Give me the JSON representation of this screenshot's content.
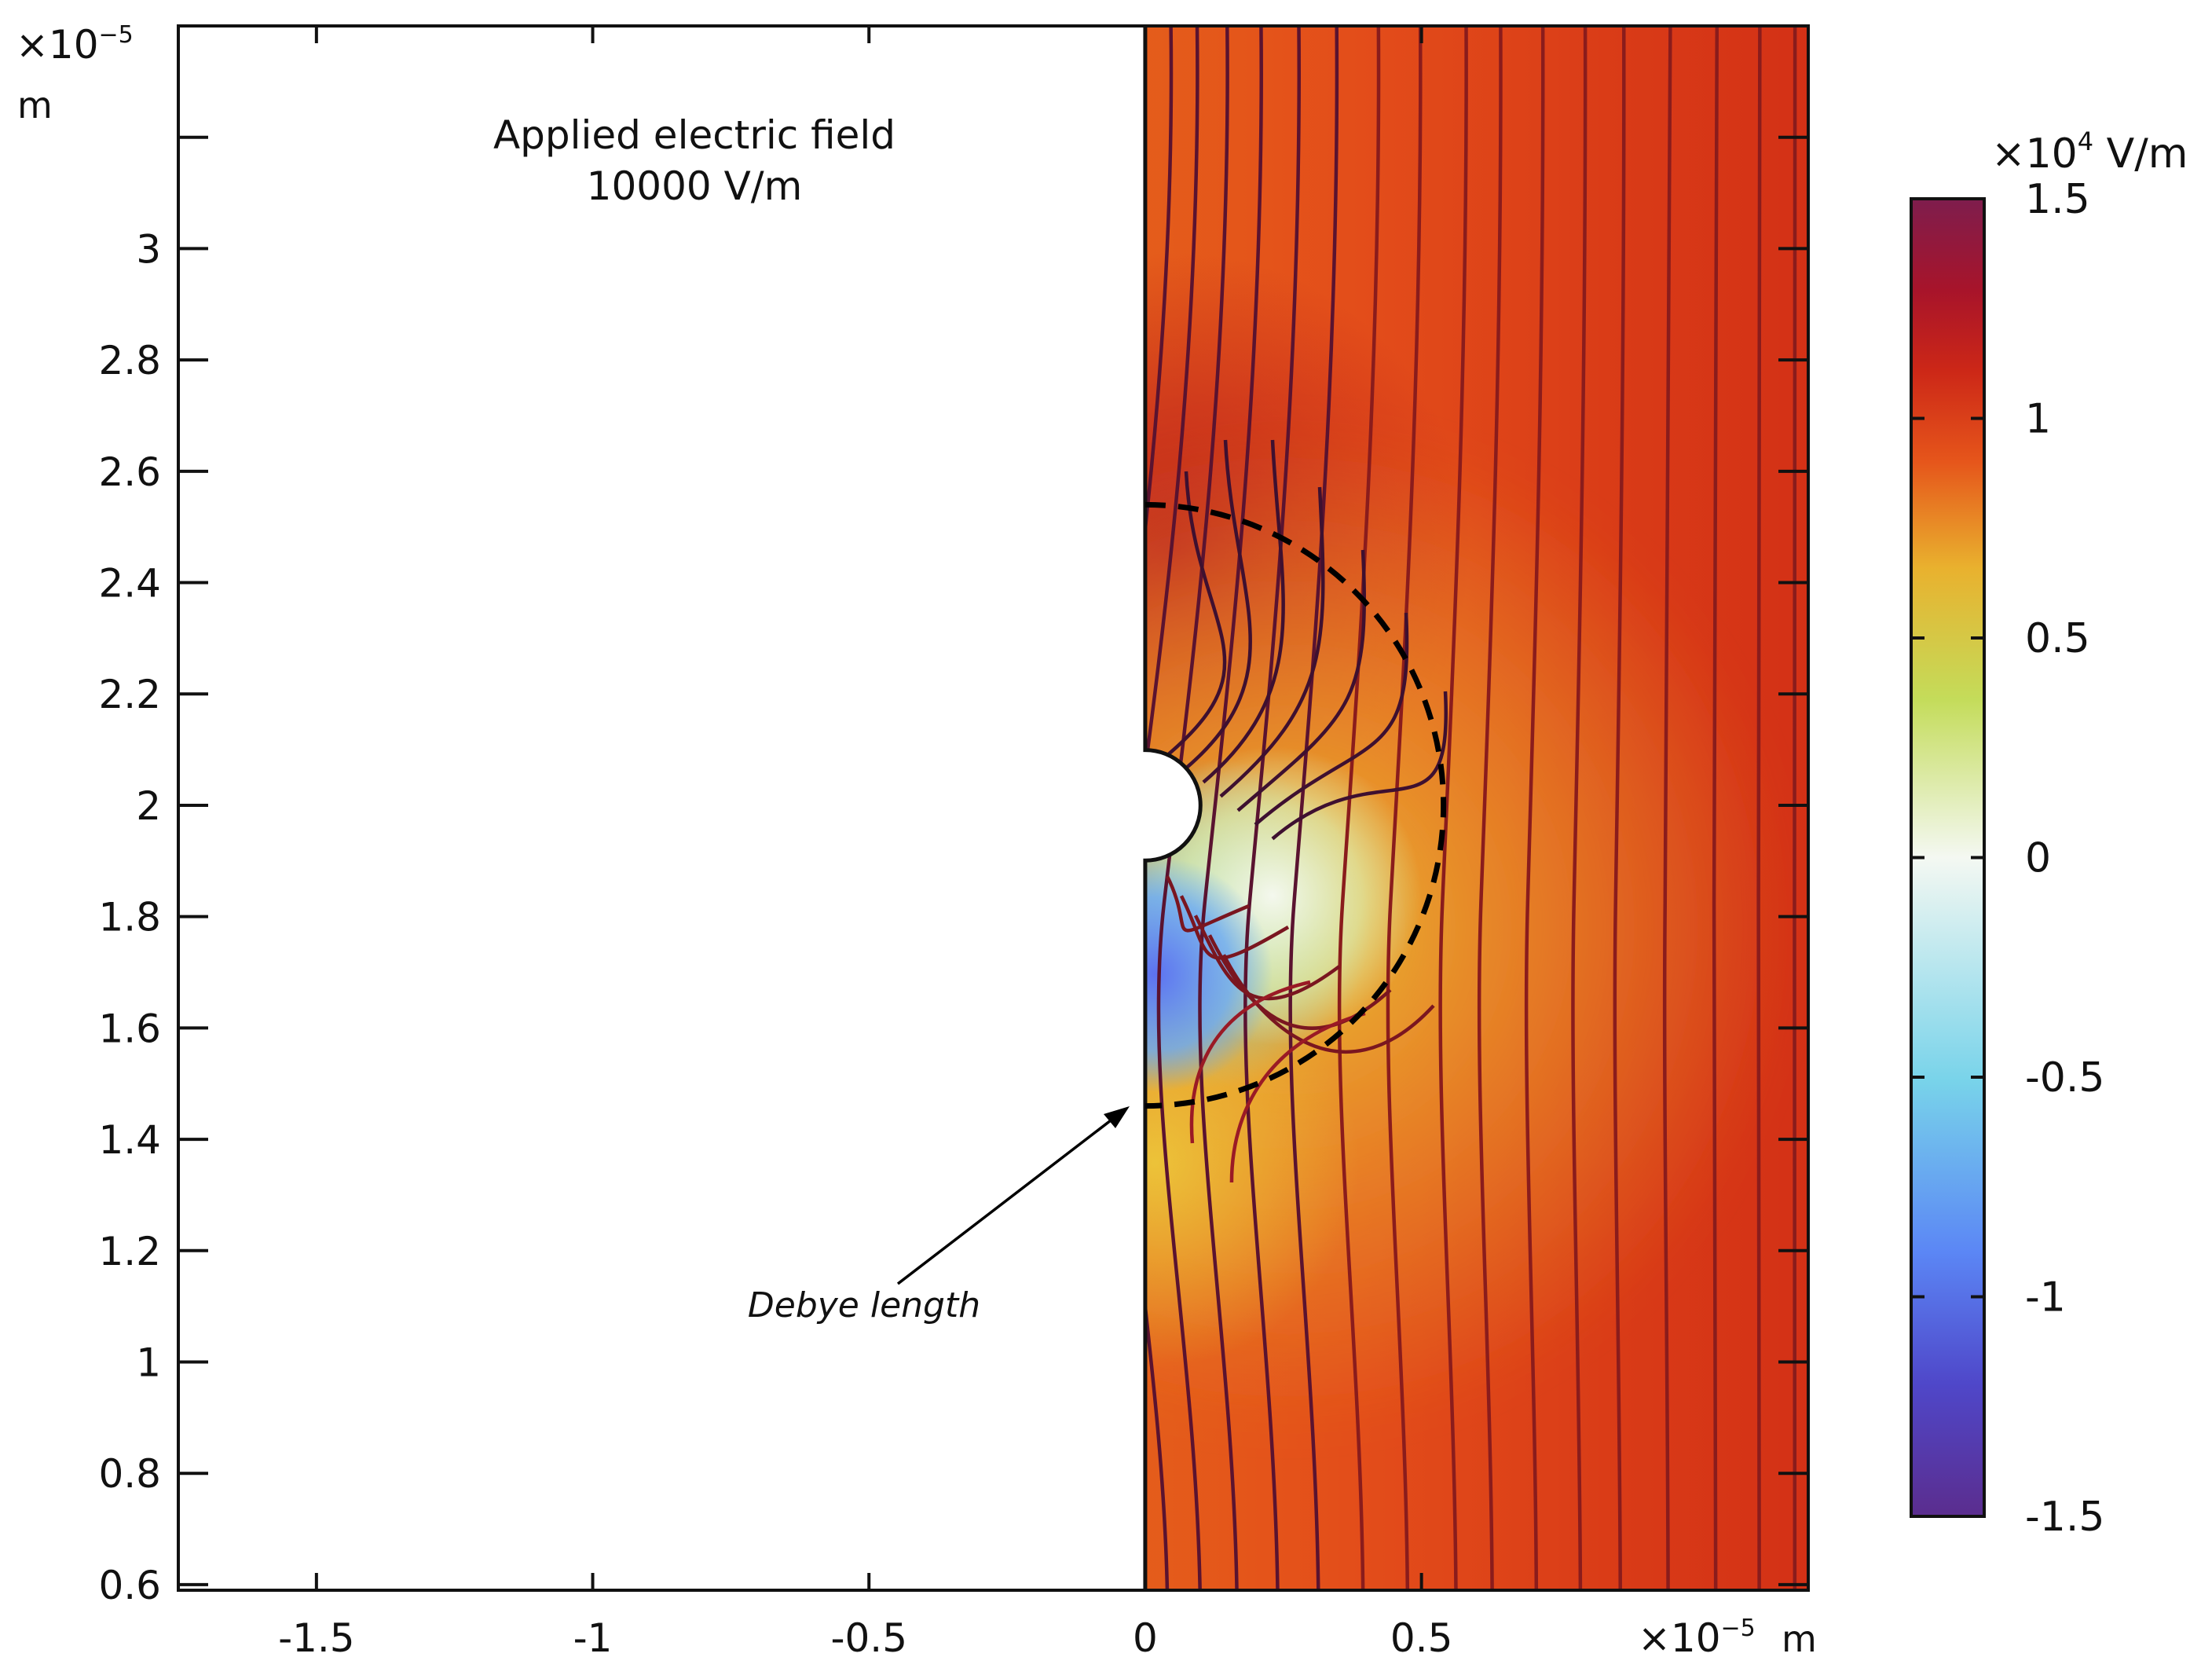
{
  "chart_data": {
    "type": "heatmap",
    "title": "",
    "annotations": {
      "title_line1": "Applied electric field",
      "title_line2": "10000 V/m",
      "arrow_label": "Debye length"
    },
    "x_axis": {
      "multiplier": "×10",
      "exponent": "−5",
      "unit": "m",
      "range": [
        -1.75,
        1.2
      ],
      "ticks": [
        -1.5,
        -1,
        -0.5,
        0,
        0.5
      ],
      "tick_labels": [
        "-1.5",
        "-1",
        "-0.5",
        "0",
        "0.5"
      ]
    },
    "y_axis": {
      "multiplier": "×10",
      "exponent": "−5",
      "unit": "m",
      "range": [
        0.59,
        3.4
      ],
      "ticks": [
        0.6,
        0.8,
        1,
        1.2,
        1.4,
        1.6,
        1.8,
        2,
        2.2,
        2.4,
        2.6,
        2.8,
        3
      ],
      "tick_labels": [
        "0.6",
        "0.8",
        "1",
        "1.2",
        "1.4",
        "1.6",
        "1.8",
        "2",
        "2.2",
        "2.4",
        "2.6",
        "2.8",
        "3"
      ]
    },
    "colorbar": {
      "multiplier": "×10",
      "exponent": "4",
      "unit": "V/m",
      "range": [
        -1.5,
        1.5
      ],
      "ticks": [
        1.5,
        1,
        0.5,
        0,
        -0.5,
        -1,
        -1.5
      ],
      "tick_labels": [
        "1.5",
        "1",
        "0.5",
        "0",
        "-0.5",
        "-1",
        "-1.5"
      ],
      "colors": [
        "#5b2d8e",
        "#4f47c9",
        "#5b86f5",
        "#78d3ea",
        "#f4f8f2",
        "#c4dc5a",
        "#e9b12e",
        "#e6561b",
        "#cc2717",
        "#a8142a",
        "#7e1d4d"
      ]
    },
    "geometry": {
      "domain_x_min": 0,
      "sphere_center_y": 2.0,
      "sphere_radius": 0.1,
      "debye_circle_radius": 0.54
    },
    "field": {
      "far_value": 1.0,
      "top_left_high": 1.15,
      "lower_left_min": -1.1
    }
  }
}
